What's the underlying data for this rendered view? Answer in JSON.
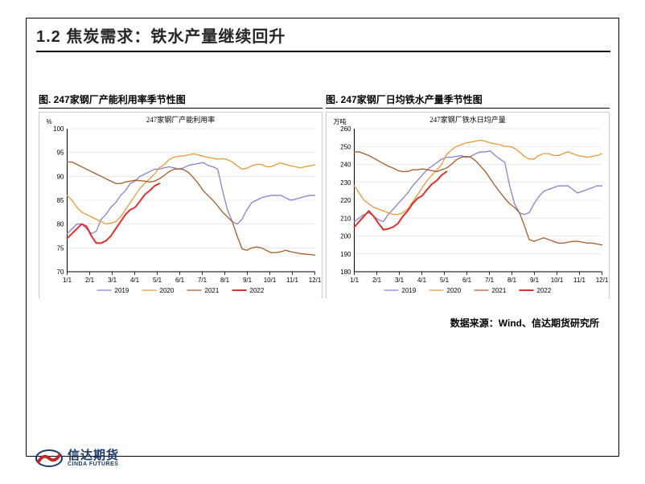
{
  "heading": "1.2 焦炭需求：铁水产量继续回升",
  "source": "数据来源：Wind、信达期货研究所",
  "logo": {
    "cn": "信达期货",
    "en": "CINDA FUTURES"
  },
  "x_categories": [
    "1/1",
    "2/1",
    "3/1",
    "4/1",
    "5/1",
    "6/1",
    "7/1",
    "8/1",
    "9/1",
    "10/1",
    "11/1",
    "12/1"
  ],
  "series_meta": {
    "2019": {
      "color": "#8b7fd6",
      "width": 1.3
    },
    "2020": {
      "color": "#e89a3c",
      "width": 1.3
    },
    "2021": {
      "color": "#a85a2a",
      "width": 1.3
    },
    "2022": {
      "color": "#e03030",
      "width": 2.0
    }
  },
  "legend_order": [
    "2019",
    "2020",
    "2021",
    "2022"
  ],
  "chart_left": {
    "caption": "图. 247家钢厂产能利用率季节性图",
    "title": "247家钢厂产能利用率",
    "y_unit": "%",
    "ylim": [
      70,
      100
    ],
    "ytick_step": 5,
    "title_fontsize": 9,
    "axis_fontsize": 8,
    "background": "#ffffff",
    "grid_color": "#d9d9d9",
    "axis_color": "#000000",
    "series": {
      "2019": [
        78,
        79,
        80,
        80,
        79,
        78,
        78.5,
        81,
        82,
        83.5,
        84.5,
        86,
        87,
        88.5,
        89,
        90,
        90.5,
        91,
        91.5,
        91.5,
        91.8,
        92,
        91.8,
        91.5,
        91.8,
        92.3,
        92.5,
        92.7,
        92.9,
        92.3,
        92.0,
        91.5,
        87,
        83,
        80.5,
        80,
        81,
        83,
        84.5,
        85,
        85.5,
        85.8,
        86,
        86,
        86,
        85.5,
        85,
        85.2,
        85.5,
        85.8,
        86,
        86
      ],
      "2020": [
        86,
        85,
        83.5,
        82.5,
        82,
        81.5,
        81,
        80.5,
        80,
        80.2,
        80.5,
        81.5,
        83,
        84.5,
        86,
        87.5,
        88.5,
        89.5,
        90.5,
        91.8,
        92.5,
        93.5,
        94,
        94.2,
        94.3,
        94.5,
        94.7,
        94.5,
        94.2,
        94,
        93.8,
        93.6,
        93.7,
        93.5,
        93,
        92.2,
        91.5,
        91.7,
        92.2,
        92.5,
        92.5,
        92,
        92,
        92.5,
        92.8,
        92.5,
        92.2,
        92,
        91.8,
        92,
        92.2,
        92.4
      ],
      "2021": [
        93,
        93,
        92.5,
        92,
        91.5,
        91,
        90.5,
        90,
        89.5,
        89,
        88.5,
        88.5,
        88.8,
        89,
        89.2,
        89.1,
        89,
        88.8,
        89,
        89.5,
        90.2,
        91,
        91.5,
        91.6,
        91.4,
        90.8,
        89.7,
        88.5,
        87,
        86,
        85,
        83.8,
        82.5,
        81.5,
        80.5,
        77.5,
        74.8,
        74.5,
        75,
        75.2,
        75,
        74.5,
        74,
        74,
        74.2,
        74.5,
        74.2,
        74,
        73.8,
        73.7,
        73.6,
        73.5
      ],
      "2022": [
        77,
        78,
        79,
        80,
        79.5,
        77.5,
        76,
        76,
        76.5,
        77.5,
        79,
        80.5,
        82,
        83,
        83.5,
        84.8,
        86.2,
        87,
        88,
        88.5
      ]
    }
  },
  "chart_right": {
    "caption": "图. 247家钢厂日均铁水产量季节性图",
    "title": "247家钢厂铁水日均产量",
    "y_unit": "万吨",
    "ylim": [
      180,
      260
    ],
    "ytick_step": 10,
    "title_fontsize": 9,
    "axis_fontsize": 8,
    "background": "#ffffff",
    "grid_color": "#d9d9d9",
    "axis_color": "#000000",
    "series": {
      "2019": [
        208,
        210,
        212,
        213,
        211,
        209,
        208,
        212,
        215,
        218,
        221,
        224,
        228,
        231,
        234,
        237,
        239,
        241,
        243,
        244,
        244,
        244.5,
        245,
        244,
        244.5,
        246,
        247,
        247,
        247.5,
        245,
        243,
        241,
        228,
        218,
        213,
        212,
        213,
        218,
        222,
        225,
        226,
        227,
        228,
        228,
        228,
        226,
        224,
        225,
        226,
        227,
        228,
        228
      ],
      "2020": [
        228,
        224,
        220,
        218,
        216,
        215,
        214,
        213,
        212,
        212,
        213,
        215,
        219,
        223,
        227,
        231,
        234,
        237,
        240,
        245.5,
        248,
        250,
        251,
        252,
        252.5,
        253,
        253.5,
        253,
        252,
        251.5,
        251,
        250,
        250,
        249,
        247,
        244.5,
        243,
        243,
        245,
        246,
        246,
        245,
        245,
        246,
        247,
        246,
        245,
        244.5,
        244,
        244.5,
        245,
        246
      ],
      "2021": [
        247,
        247,
        246,
        245,
        243.5,
        242,
        240.5,
        239,
        238,
        236.5,
        236,
        236,
        237,
        237,
        237.5,
        237,
        236.5,
        236,
        237,
        238,
        240,
        242.5,
        244,
        244.5,
        244,
        242,
        239,
        236,
        232,
        228,
        224.5,
        221,
        218,
        216,
        213,
        206,
        198,
        197,
        198,
        199,
        198,
        197,
        196,
        196,
        196.5,
        197,
        197,
        196.5,
        196,
        196,
        195.5,
        195
      ],
      "2022": [
        205,
        208,
        211,
        214,
        211,
        207,
        203.5,
        204,
        205,
        207,
        211,
        214,
        218,
        221,
        222.5,
        226,
        229,
        231,
        234,
        236
      ]
    }
  }
}
